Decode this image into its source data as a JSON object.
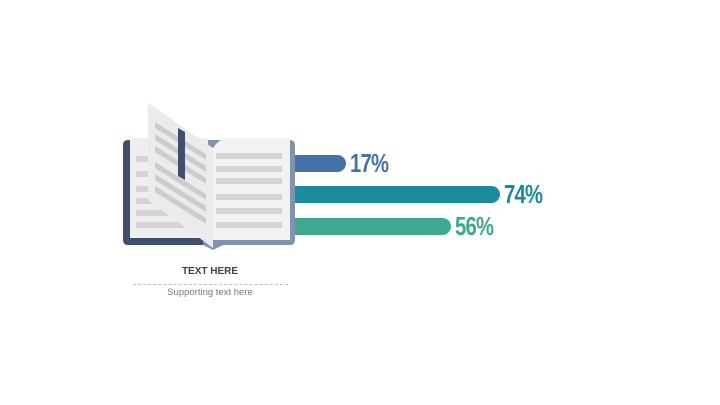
{
  "bars": [
    {
      "value": 17,
      "label": "17%",
      "color": "#4472a8"
    },
    {
      "value": 74,
      "label": "74%",
      "color": "#1b8a9c"
    },
    {
      "value": 56,
      "label": "56%",
      "color": "#40a891"
    }
  ],
  "caption": {
    "title": "TEXT HERE",
    "subtitle": "Supporting text here"
  },
  "icon": "open-book-icon"
}
